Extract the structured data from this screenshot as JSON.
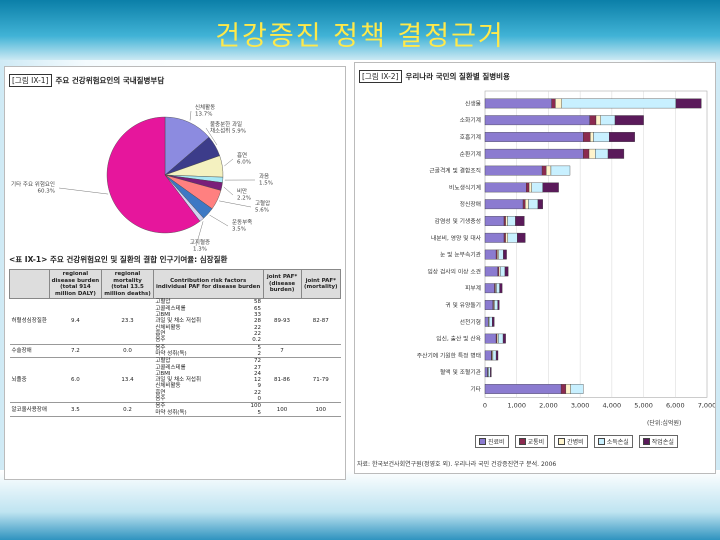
{
  "slide": {
    "title": "건강증진 정책 결정근거"
  },
  "chart_data": [
    {
      "type": "pie",
      "caption_tag": "[그림 IX-1]",
      "title": "주요 건강위험요인의 국내질병부담",
      "slices": [
        {
          "label": "고혈압/당뇨 등 기타 주요 위험요인",
          "value": 60.3,
          "color": "#e6169c",
          "lines": [
            "기타 주요 위험요인",
            "60.3%"
          ]
        },
        {
          "label": "신체활동 부족",
          "value": 13.7,
          "color": "#8c8be0",
          "lines": [
            "신체활동",
            "13.7%"
          ]
        },
        {
          "label": "불충분한 과일/채소 섭취",
          "value": 5.9,
          "color": "#3c3c8a",
          "lines": [
            "불충분한 과일",
            "채소섭취 5.9%"
          ]
        },
        {
          "label": "흡연",
          "value": 6.0,
          "color": "#f4f1c0",
          "lines": [
            "흡연",
            "6.0%"
          ]
        },
        {
          "label": "과음",
          "value": 1.5,
          "color": "#a7e9f5",
          "lines": [
            "과음",
            "1.5%"
          ]
        },
        {
          "label": "비만",
          "value": 2.2,
          "color": "#7a1e7a",
          "lines": [
            "비만",
            "2.2%"
          ]
        },
        {
          "label": "고혈압",
          "value": 5.6,
          "color": "#ff8080",
          "lines": [
            "고혈압",
            "5.6%"
          ]
        },
        {
          "label": "운동부족",
          "value": 3.5,
          "color": "#3d78c4",
          "lines": [
            "운동부족",
            "3.5%"
          ]
        },
        {
          "label": "고지혈증",
          "value": 1.3,
          "color": "#d2d2f0",
          "lines": [
            "고지혈증",
            "1.3%"
          ]
        }
      ]
    },
    {
      "type": "bar",
      "stacked": true,
      "orientation": "horizontal",
      "caption_tag": "[그림 IX-2]",
      "title": "우리나라 국민의 질환별 질병비용",
      "categories": [
        "신생물",
        "소화기계",
        "호흡기계",
        "순환기계",
        "근골격계 및 결합조직",
        "비뇨생식기계",
        "정신장애",
        "감염성 및 기생충성",
        "내분비, 영양 및 대사",
        "눈 및 눈부속기관",
        "임상 검사의 이상 소견",
        "피부계",
        "귀 및 유양돌기",
        "선천기형",
        "임신, 출산 및 산욕",
        "주산기에 기원한 특정 병태",
        "혈액 및 조혈기관",
        "기타"
      ],
      "series": [
        {
          "name": "진료비",
          "color": "#8b7bd0",
          "values": [
            2100,
            3300,
            3100,
            3100,
            1800,
            1300,
            1200,
            600,
            600,
            350,
            400,
            300,
            250,
            100,
            350,
            200,
            80,
            2400
          ]
        },
        {
          "name": "교통비",
          "color": "#8b2a4f",
          "values": [
            120,
            200,
            220,
            180,
            130,
            90,
            70,
            50,
            50,
            40,
            40,
            30,
            20,
            10,
            30,
            20,
            10,
            150
          ]
        },
        {
          "name": "간병비",
          "color": "#fff4cc",
          "values": [
            200,
            150,
            100,
            200,
            150,
            80,
            100,
            60,
            70,
            40,
            40,
            30,
            30,
            20,
            40,
            30,
            20,
            150
          ]
        },
        {
          "name": "소득손실",
          "color": "#c8f0ff",
          "values": [
            3600,
            450,
            500,
            400,
            600,
            350,
            300,
            250,
            300,
            150,
            150,
            100,
            100,
            100,
            150,
            100,
            60,
            400
          ]
        },
        {
          "name": "작업손실",
          "color": "#5a1a5a",
          "values": [
            800,
            900,
            800,
            500,
            0,
            500,
            150,
            280,
            250,
            100,
            100,
            80,
            50,
            60,
            80,
            60,
            30,
            0
          ]
        }
      ],
      "xticks": [
        "0",
        "1,000",
        "2,000",
        "3,000",
        "4,000",
        "5,000",
        "6,000",
        "7,000"
      ],
      "xlim": [
        0,
        7000
      ],
      "unit": "(단위:십억원)",
      "source": "자료: 한국보건사회연구원(정영호 외). 우리나라 국민 건강증진연구 분석. 2006"
    },
    {
      "type": "table",
      "caption_tag": "<표 IX-1>",
      "title": "주요 건강위험요인 및 질환의 결합 인구기여율: 심장질환",
      "columns": {
        "disease": "",
        "burden": [
          "regional",
          "disease burden",
          "(total 914",
          "million DALY)"
        ],
        "mortality": [
          "regional",
          "mortality",
          "(total 13.5",
          "million deaths)"
        ],
        "factors": [
          "Contribution risk factors",
          "individual PAF for disease burden"
        ],
        "joint_burden": [
          "joint PAF*",
          "(disease",
          "burden)"
        ],
        "joint_mortality": [
          "joint PAF*",
          "(mortality)"
        ]
      },
      "rows": [
        {
          "disease": "허혈성심장질환",
          "burden": "9.4",
          "mortality": "23.3",
          "factors": [
            [
              "고혈압",
              "58"
            ],
            [
              "고콜레스테롤",
              "65"
            ],
            [
              "고BMI",
              "33"
            ],
            [
              "과일 및 채소 저섭취",
              "28"
            ],
            [
              "신체비활동",
              "22"
            ],
            [
              "흡연",
              "22"
            ],
            [
              "음주",
              "0.2"
            ]
          ],
          "joint_burden": "89-93",
          "joint_mortality": "82-87"
        },
        {
          "disease": "수술장애",
          "burden": "7.2",
          "mortality": "0.0",
          "factors": [
            [
              "음주",
              "5"
            ],
            [
              "마약 성취(독)",
              "2"
            ]
          ],
          "joint_burden": "7",
          "joint_mortality": ""
        },
        {
          "disease": "뇌졸중",
          "burden": "6.0",
          "mortality": "13.4",
          "factors": [
            [
              "고혈압",
              "72"
            ],
            [
              "고콜레스테롤",
              "27"
            ],
            [
              "고BMI",
              "24"
            ],
            [
              "과일 및 채소 저섭취",
              "12"
            ],
            [
              "신체비활동",
              "9"
            ],
            [
              "흡연",
              "22"
            ],
            [
              "음주",
              "0"
            ]
          ],
          "joint_burden": "81-86",
          "joint_mortality": "71-79"
        },
        {
          "disease": "알코올사용장애",
          "burden": "3.5",
          "mortality": "0.2",
          "factors": [
            [
              "음주",
              "100"
            ],
            [
              "마약 성취(독)",
              "5"
            ]
          ],
          "joint_burden": "100",
          "joint_mortality": "100"
        }
      ]
    }
  ]
}
